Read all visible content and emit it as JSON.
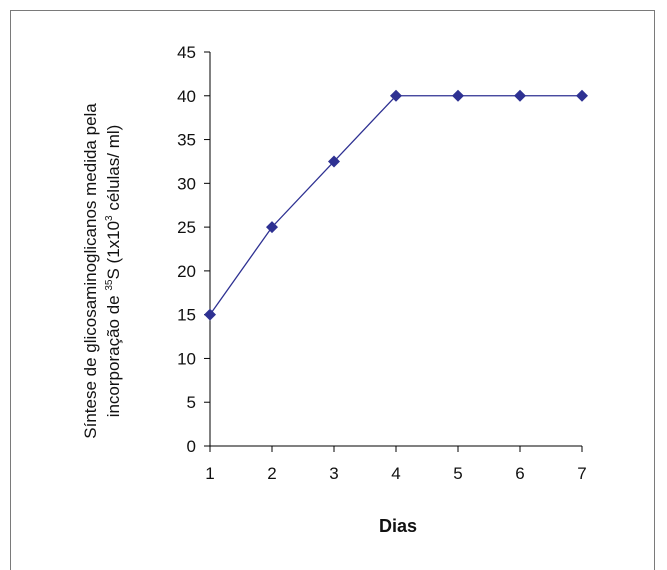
{
  "chart_data": {
    "type": "line",
    "title": "",
    "xlabel": "Dias",
    "ylabel_line1": "Síntese de glicosaminoglicanos medida pela",
    "ylabel_line2_pre": "incorporação de ",
    "ylabel_line2_sup1": "35",
    "ylabel_line2_mid": "S (1x10",
    "ylabel_line2_sup2": "3",
    "ylabel_line2_post": " células/ ml)",
    "x": [
      1,
      2,
      3,
      4,
      5,
      6,
      7
    ],
    "xlim": [
      1,
      7
    ],
    "ylim": [
      0,
      45
    ],
    "yticks": [
      0,
      5,
      10,
      15,
      20,
      25,
      30,
      35,
      40,
      45
    ],
    "series": [
      {
        "values": [
          15,
          25,
          32.5,
          40,
          40,
          40,
          40
        ]
      }
    ],
    "grid": false,
    "legend": "none",
    "colors": {
      "line": "#2e3192",
      "marker": "#2e3192",
      "axis": "#000000"
    }
  }
}
